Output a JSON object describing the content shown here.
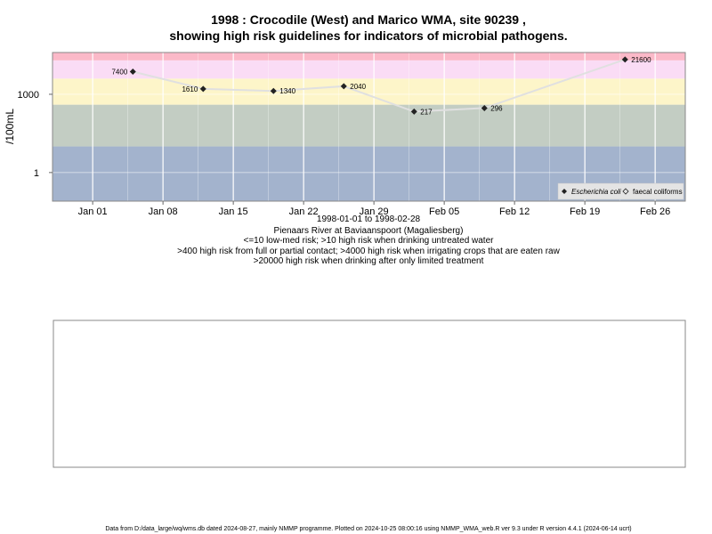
{
  "title_line1": "1998 : Crocodile (West) and Marico WMA, site 90239 ,",
  "title_line2": "showing high risk guidelines for indicators of microbial pathogens.",
  "captions": [
    "1998-01-01 to 1998-02-28",
    "Pienaars River at Baviaanspoort (Magaliesberg)",
    "<=10 low-med risk; >10 high risk when drinking untreated water",
    ">400 high risk from full or partial contact; >4000 high risk when irrigating crops that are eaten raw",
    ">20000 high risk when drinking after only limited treatment"
  ],
  "footer": "Data from D:/data_large/wq/wms.db dated 2024-08-27, mainly NMMP programme. Plotted on 2024-10-25 08:00:16 using NMMP_WMA_web.R ver 9.3 under R version 4.4.1 (2024-06-14 ucrt)",
  "colors": {
    "band_low": "#a3b3cd",
    "band_mid": "#c3cdc3",
    "band_contact": "#fdf5c9",
    "band_irrigate": "#fadcf5",
    "band_high": "#fbb9c8",
    "line": "#e0e0e0",
    "grid": "#ffffff",
    "point": "#222222"
  },
  "chart_data": {
    "type": "scatter",
    "title": "1998 : Crocodile (West) and Marico WMA, site 90239 , showing high risk guidelines for indicators of microbial pathogens.",
    "xlabel": "",
    "ylabel": "/100mL",
    "y_scale": "log10",
    "xlim": [
      "1997-12-28",
      "1998-03-01"
    ],
    "ylim": [
      0.08,
      40000
    ],
    "x_ticks": [
      "1998-01-01",
      "1998-01-08",
      "1998-01-15",
      "1998-01-22",
      "1998-01-29",
      "1998-02-05",
      "1998-02-12",
      "1998-02-19",
      "1998-02-26"
    ],
    "x_tick_labels": [
      "Jan 01",
      "Jan 08",
      "Jan 15",
      "Jan 22",
      "Jan 29",
      "Feb 05",
      "Feb 12",
      "Feb 19",
      "Feb 26"
    ],
    "y_ticks": [
      1,
      1000
    ],
    "y_tick_labels": [
      "1",
      "1000"
    ],
    "grid": true,
    "guideline_bands": [
      {
        "from": 0.08,
        "to": 10,
        "color": "#a3b3cd"
      },
      {
        "from": 10,
        "to": 400,
        "color": "#c3cdc3"
      },
      {
        "from": 400,
        "to": 4000,
        "color": "#fdf5c9"
      },
      {
        "from": 4000,
        "to": 20000,
        "color": "#fadcf5"
      },
      {
        "from": 20000,
        "to": 40000,
        "color": "#fbb9c8"
      }
    ],
    "legend_position": "bottom-right",
    "series": [
      {
        "name": "Escherichia coli",
        "marker": "filled-diamond",
        "points": [
          {
            "x": "1998-01-05",
            "y": 7400,
            "label": "7400"
          },
          {
            "x": "1998-01-12",
            "y": 1610,
            "label": "1610"
          },
          {
            "x": "1998-01-19",
            "y": 1340,
            "label": "1340"
          },
          {
            "x": "1998-01-26",
            "y": 2040,
            "label": "2040"
          },
          {
            "x": "1998-02-02",
            "y": 217,
            "label": "217"
          },
          {
            "x": "1998-02-09",
            "y": 296,
            "label": "296"
          },
          {
            "x": "1998-02-23",
            "y": 21600,
            "label": "21600"
          }
        ]
      },
      {
        "name": "faecal coliforms",
        "marker": "open-diamond",
        "points": []
      }
    ]
  }
}
